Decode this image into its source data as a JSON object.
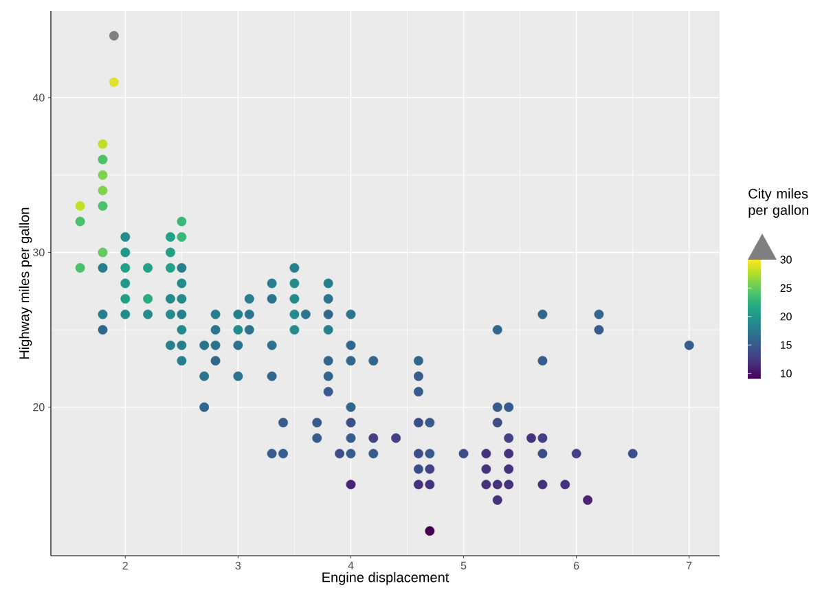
{
  "chart_data": {
    "type": "scatter",
    "xlabel": "Engine displacement",
    "ylabel": "Highway miles per gallon",
    "clabel": "City miles per gallon",
    "x": [
      1.6,
      1.6,
      1.6,
      1.8,
      1.8,
      1.8,
      1.8,
      1.8,
      1.8,
      1.8,
      1.8,
      1.8,
      1.9,
      1.9,
      2.0,
      2.0,
      2.0,
      2.0,
      2.0,
      2.0,
      2.2,
      2.2,
      2.2,
      2.4,
      2.4,
      2.4,
      2.4,
      2.4,
      2.4,
      2.5,
      2.5,
      2.5,
      2.5,
      2.5,
      2.5,
      2.5,
      2.5,
      2.5,
      2.7,
      2.7,
      2.7,
      2.8,
      2.8,
      2.8,
      2.8,
      3.0,
      3.0,
      3.0,
      3.0,
      3.1,
      3.1,
      3.1,
      3.3,
      3.3,
      3.3,
      3.3,
      3.3,
      3.4,
      3.4,
      3.5,
      3.5,
      3.5,
      3.5,
      3.5,
      3.6,
      3.7,
      3.7,
      3.8,
      3.8,
      3.8,
      3.8,
      3.8,
      3.8,
      3.8,
      3.9,
      4.0,
      4.0,
      4.0,
      4.0,
      4.0,
      4.0,
      4.0,
      4.0,
      4.2,
      4.2,
      4.2,
      4.4,
      4.6,
      4.6,
      4.6,
      4.6,
      4.6,
      4.6,
      4.6,
      4.7,
      4.7,
      4.7,
      4.7,
      4.7,
      5.0,
      5.2,
      5.2,
      5.2,
      5.3,
      5.3,
      5.3,
      5.3,
      5.3,
      5.4,
      5.4,
      5.4,
      5.4,
      5.4,
      5.6,
      5.7,
      5.7,
      5.7,
      5.7,
      5.7,
      5.9,
      6.0,
      6.1,
      6.2,
      6.2,
      6.5,
      7.0
    ],
    "values": [
      33,
      32,
      29,
      37,
      36,
      35,
      34,
      33,
      30,
      29,
      26,
      25,
      44,
      41,
      31,
      30,
      29,
      28,
      27,
      26,
      29,
      27,
      26,
      31,
      30,
      29,
      27,
      26,
      24,
      32,
      31,
      29,
      28,
      27,
      26,
      25,
      24,
      23,
      24,
      22,
      20,
      26,
      25,
      24,
      23,
      26,
      25,
      24,
      22,
      27,
      26,
      25,
      28,
      27,
      24,
      22,
      17,
      19,
      17,
      29,
      28,
      27,
      26,
      25,
      26,
      19,
      18,
      28,
      27,
      26,
      25,
      23,
      22,
      21,
      17,
      26,
      24,
      23,
      20,
      19,
      18,
      17,
      15,
      23,
      18,
      17,
      18,
      23,
      22,
      21,
      19,
      17,
      16,
      15,
      19,
      17,
      16,
      15,
      12,
      17,
      17,
      16,
      15,
      25,
      20,
      19,
      15,
      14,
      20,
      18,
      17,
      16,
      15,
      18,
      26,
      23,
      18,
      17,
      15,
      15,
      17,
      14,
      26,
      25,
      17,
      24
    ],
    "cvalues": [
      28,
      24,
      24,
      28,
      24,
      26,
      26,
      24,
      25,
      18,
      18,
      16,
      null,
      29,
      19,
      20,
      21,
      20,
      21,
      19,
      21,
      22,
      19,
      21,
      21,
      21,
      19,
      19,
      18,
      23,
      23,
      18,
      19,
      19,
      18,
      19,
      18,
      18,
      17,
      17,
      16,
      18,
      17,
      17,
      16,
      18,
      19,
      17,
      17,
      18,
      17,
      17,
      18,
      17,
      17,
      16,
      15,
      15,
      15,
      18,
      19,
      19,
      19,
      19,
      17,
      15,
      15,
      18,
      17,
      16,
      18,
      16,
      16,
      15,
      14,
      17,
      16,
      16,
      16,
      14,
      15,
      15,
      11,
      16,
      13,
      15,
      13,
      16,
      15,
      15,
      14,
      14,
      14,
      12,
      15,
      15,
      13,
      12,
      9,
      14,
      12,
      12,
      12,
      16,
      15,
      14,
      12,
      12,
      15,
      13,
      12,
      12,
      12,
      12,
      16,
      15,
      13,
      14,
      12,
      12,
      13,
      11,
      16,
      15,
      14,
      15
    ],
    "xlim": [
      1.34,
      7.27
    ],
    "ylim": [
      10.4,
      45.6
    ],
    "xticks": [
      2,
      3,
      4,
      5,
      6,
      7
    ],
    "yticks": [
      20,
      30,
      40
    ],
    "clim": [
      9,
      30
    ],
    "cticks": [
      10,
      15,
      20,
      25,
      30
    ],
    "grid": true,
    "marker": "circle"
  }
}
